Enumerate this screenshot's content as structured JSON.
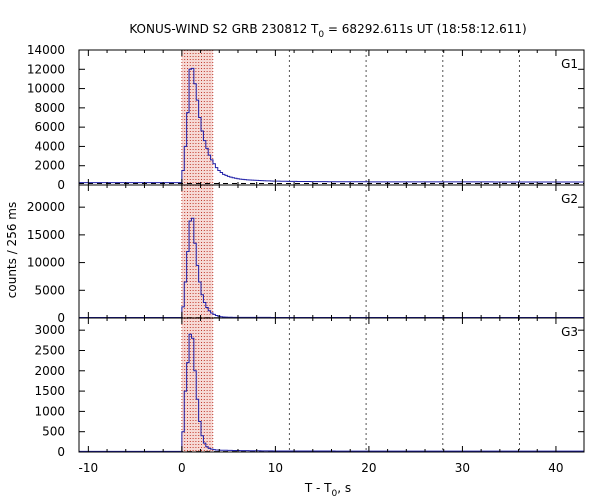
{
  "chart_data": {
    "type": "line",
    "title_prefix": "KONUS-WIND S2 GRB 230812 T",
    "title_sub": "0",
    "title_suffix": " = 68292.611s UT (18:58:12.611)",
    "xlabel_prefix": "T - T",
    "xlabel_sub": "0",
    "xlabel_suffix": ", s",
    "ylabel": "counts / 256 ms",
    "xlim": [
      -11,
      43
    ],
    "x_ticks": [
      -10,
      0,
      10,
      20,
      30,
      40
    ],
    "x_tick_labels": [
      "-10",
      "0",
      "10",
      "20",
      "30",
      "40"
    ],
    "vlines_dotted": [
      11.5,
      19.7,
      27.9,
      36.1
    ],
    "shaded_interval": [
      0,
      3.3
    ],
    "shaded_dashes": [
      0.0,
      0.3,
      0.6,
      0.9,
      1.2,
      1.5,
      1.8,
      2.1,
      2.4,
      2.7,
      3.0,
      3.3
    ],
    "bin_width": 0.256,
    "panels": [
      {
        "label": "G1",
        "ylim": [
          0,
          14000
        ],
        "y_ticks": [
          0,
          2000,
          4000,
          6000,
          8000,
          10000,
          12000,
          14000
        ],
        "y_tick_labels": [
          "0",
          "2000",
          "4000",
          "6000",
          "8000",
          "10000",
          "12000",
          "14000"
        ],
        "background": 300,
        "background_line": 150,
        "pre_burst": 250,
        "profile": [
          [
            0,
            1500
          ],
          [
            0.256,
            4000
          ],
          [
            0.512,
            7500
          ],
          [
            0.768,
            12000
          ],
          [
            1.024,
            12100
          ],
          [
            1.28,
            10500
          ],
          [
            1.536,
            8800
          ],
          [
            1.792,
            7000
          ],
          [
            2.048,
            5600
          ],
          [
            2.304,
            4600
          ],
          [
            2.56,
            3800
          ],
          [
            2.816,
            3100
          ],
          [
            3.072,
            2600
          ],
          [
            3.328,
            2200
          ],
          [
            3.584,
            1800
          ],
          [
            3.84,
            1500
          ],
          [
            4.096,
            1300
          ],
          [
            4.352,
            1100
          ],
          [
            4.608,
            1000
          ],
          [
            4.864,
            900
          ],
          [
            5.12,
            820
          ],
          [
            5.376,
            750
          ],
          [
            5.632,
            700
          ],
          [
            5.888,
            650
          ],
          [
            6.144,
            610
          ],
          [
            6.4,
            580
          ],
          [
            7,
            530
          ],
          [
            8,
            470
          ],
          [
            9,
            430
          ],
          [
            10,
            400
          ],
          [
            12,
            370
          ],
          [
            15,
            345
          ],
          [
            20,
            330
          ],
          [
            30,
            320
          ],
          [
            43,
            310
          ]
        ]
      },
      {
        "label": "G2",
        "ylim": [
          0,
          24000
        ],
        "y_ticks": [
          0,
          5000,
          10000,
          15000,
          20000
        ],
        "y_tick_labels": [
          "0",
          "5000",
          "10000",
          "15000",
          "20000"
        ],
        "background": 100,
        "background_line": 50,
        "pre_burst": 100,
        "profile": [
          [
            0,
            2000
          ],
          [
            0.256,
            6500
          ],
          [
            0.512,
            12000
          ],
          [
            0.768,
            17500
          ],
          [
            1.024,
            18000
          ],
          [
            1.28,
            13500
          ],
          [
            1.536,
            9500
          ],
          [
            1.792,
            6500
          ],
          [
            2.048,
            4200
          ],
          [
            2.304,
            2800
          ],
          [
            2.56,
            1900
          ],
          [
            2.816,
            1300
          ],
          [
            3.072,
            900
          ],
          [
            3.328,
            650
          ],
          [
            3.584,
            450
          ],
          [
            3.84,
            320
          ],
          [
            4.096,
            230
          ],
          [
            4.352,
            170
          ],
          [
            5,
            130
          ],
          [
            6,
            110
          ],
          [
            10,
            100
          ],
          [
            43,
            100
          ]
        ]
      },
      {
        "label": "G3",
        "ylim": [
          0,
          3300
        ],
        "y_ticks": [
          0,
          500,
          1000,
          1500,
          2000,
          2500,
          3000
        ],
        "y_tick_labels": [
          "0",
          "500",
          "1000",
          "1500",
          "2000",
          "2500",
          "3000"
        ],
        "background": 20,
        "background_line": 10,
        "pre_burst": 15,
        "profile": [
          [
            0,
            500
          ],
          [
            0.256,
            1500
          ],
          [
            0.512,
            2200
          ],
          [
            0.768,
            2900
          ],
          [
            1.024,
            2800
          ],
          [
            1.28,
            2000
          ],
          [
            1.536,
            1300
          ],
          [
            1.792,
            750
          ],
          [
            2.048,
            400
          ],
          [
            2.304,
            220
          ],
          [
            2.56,
            130
          ],
          [
            2.816,
            90
          ],
          [
            3.072,
            70
          ],
          [
            3.328,
            60
          ],
          [
            3.584,
            50
          ],
          [
            4,
            45
          ],
          [
            5,
            40
          ],
          [
            6,
            35
          ],
          [
            8,
            30
          ],
          [
            10,
            25
          ],
          [
            20,
            22
          ],
          [
            43,
            20
          ]
        ]
      }
    ]
  }
}
